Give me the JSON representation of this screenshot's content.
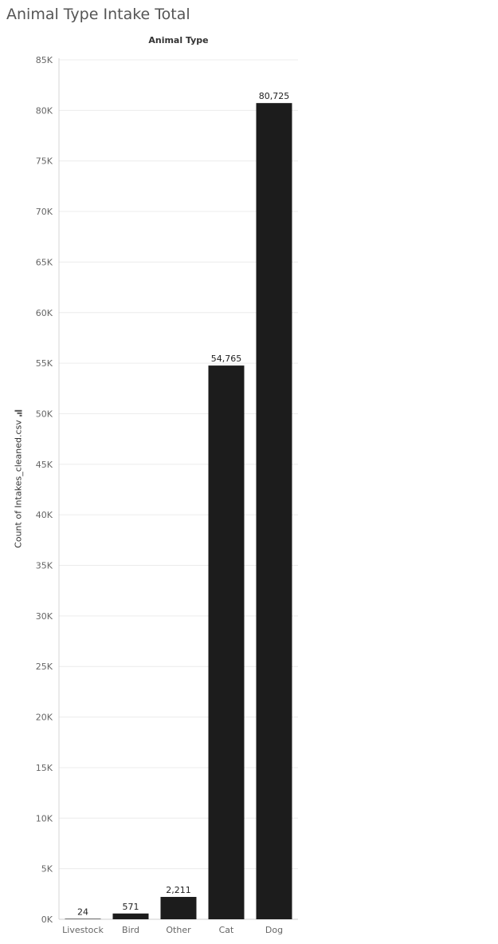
{
  "sheet": {
    "title": "Animal Type Intake Total"
  },
  "chart_data": {
    "type": "bar",
    "title": "Animal Type Intake Total",
    "header": "Animal Type",
    "xlabel": "",
    "ylabel": "Count of Intakes_cleaned.csv",
    "categories": [
      "Livestock",
      "Bird",
      "Other",
      "Cat",
      "Dog"
    ],
    "values": [
      24,
      571,
      2211,
      54765,
      80725
    ],
    "data_labels": [
      "24",
      "571",
      "2,211",
      "54,765",
      "80,725"
    ],
    "ylim": [
      0,
      85000
    ],
    "yticks": [
      0,
      5000,
      10000,
      15000,
      20000,
      25000,
      30000,
      35000,
      40000,
      45000,
      50000,
      55000,
      60000,
      65000,
      70000,
      75000,
      80000,
      85000
    ],
    "ytick_labels": [
      "0K",
      "5K",
      "10K",
      "15K",
      "20K",
      "25K",
      "30K",
      "35K",
      "40K",
      "45K",
      "50K",
      "55K",
      "60K",
      "65K",
      "70K",
      "75K",
      "80K",
      "85K"
    ],
    "grid": true,
    "bar_color": "#1c1c1c",
    "grid_color": "#ececec"
  }
}
